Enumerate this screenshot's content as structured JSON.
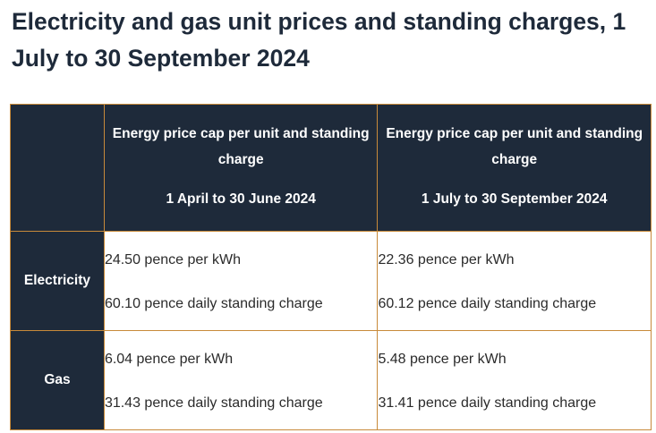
{
  "title": "Electricity and gas unit prices and standing charges, 1 July to 30 September 2024",
  "table": {
    "columns": [
      {
        "description": "Energy price cap per unit and standing charge",
        "period": "1 April to 30 June 2024"
      },
      {
        "description": "Energy price cap per unit and standing charge",
        "period": "1 July to 30 September 2024"
      }
    ],
    "rows": [
      {
        "label": "Electricity",
        "cells": [
          {
            "unit": "24.50 pence per kWh",
            "standing": "60.10 pence daily standing charge"
          },
          {
            "unit": "22.36 pence per kWh",
            "standing": "60.12 pence daily standing charge"
          }
        ]
      },
      {
        "label": "Gas",
        "cells": [
          {
            "unit": "6.04 pence per kWh",
            "standing": "31.43 pence daily standing charge"
          },
          {
            "unit": "5.48 pence per kWh",
            "standing": "31.41 pence daily standing charge"
          }
        ]
      }
    ]
  },
  "colors": {
    "header_bg": "#1e2a3a",
    "border": "#c88a3a",
    "text": "#1e2a3a"
  }
}
